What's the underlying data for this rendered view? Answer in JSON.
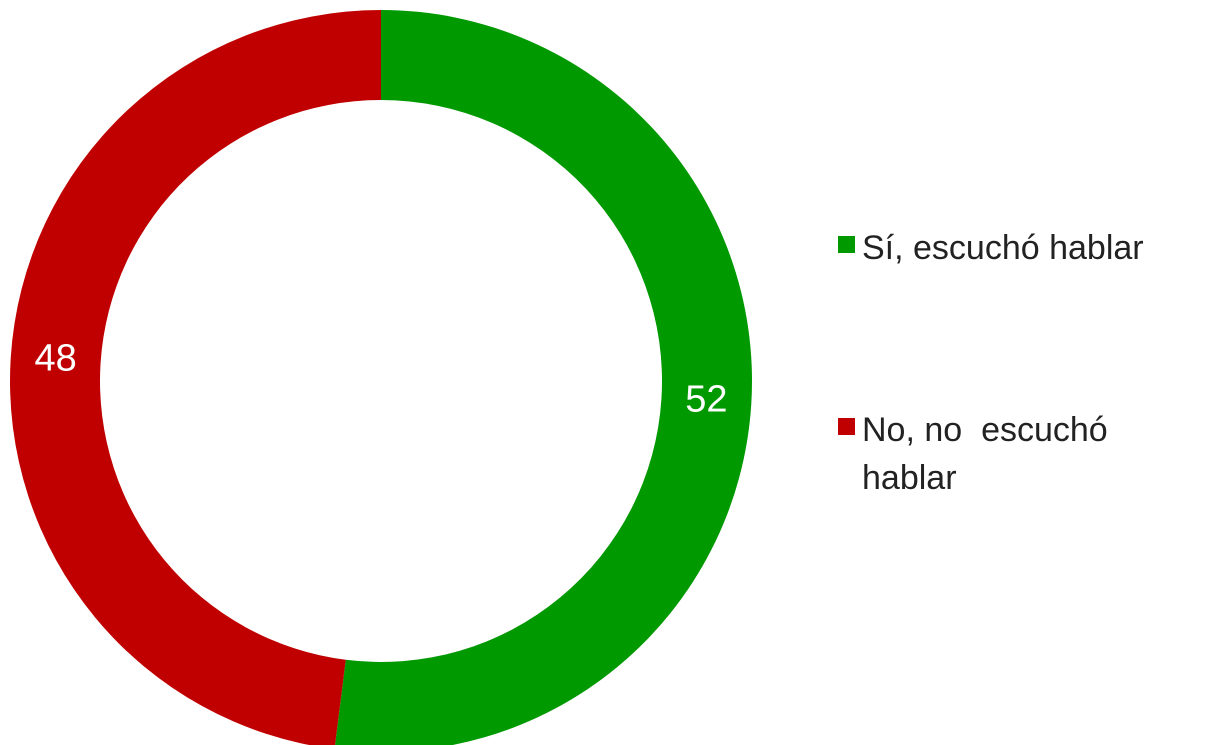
{
  "chart_data": {
    "type": "donut",
    "categories": [
      "Sí, escuchó hablar",
      "No, no  escuchó hablar"
    ],
    "values": [
      52,
      48
    ],
    "colors": [
      "#009900",
      "#c00000"
    ]
  }
}
